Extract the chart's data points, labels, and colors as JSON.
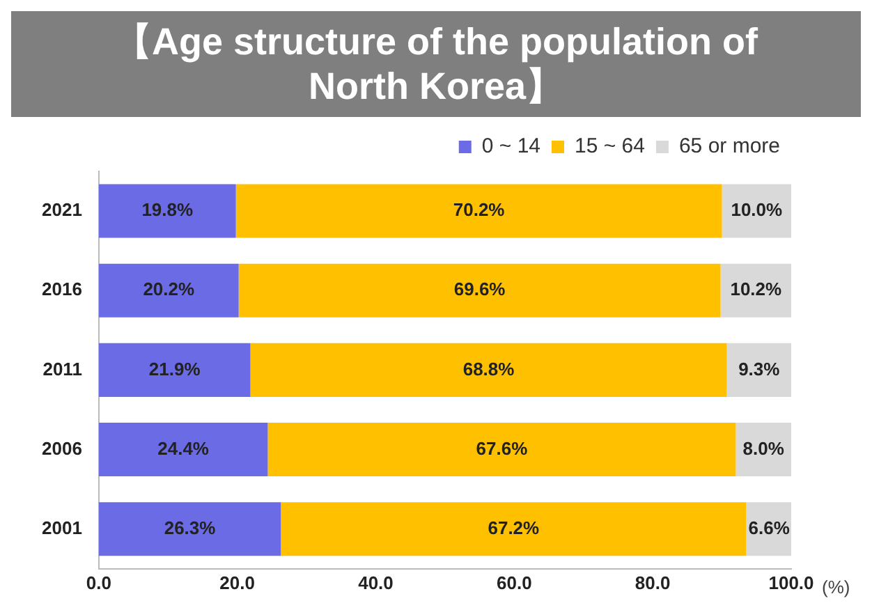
{
  "chart_data": {
    "type": "bar",
    "orientation": "horizontal",
    "stacked": true,
    "title": "【Age structure of the population of North Korea】",
    "xlabel": "(%)",
    "categories": [
      "2021",
      "2016",
      "2011",
      "2006",
      "2001"
    ],
    "series": [
      {
        "name": "0 ~ 14",
        "color": "#6b6be6",
        "values": [
          19.8,
          20.2,
          21.9,
          24.4,
          26.3
        ],
        "value_labels": [
          "19.8%",
          "20.2%",
          "21.9%",
          "24.4%",
          "26.3%"
        ]
      },
      {
        "name": "15 ~ 64",
        "color": "#ffc000",
        "values": [
          70.2,
          69.6,
          68.8,
          67.6,
          67.2
        ],
        "value_labels": [
          "70.2%",
          "69.6%",
          "68.8%",
          "67.6%",
          "67.2%"
        ]
      },
      {
        "name": "65 or more",
        "color": "#d9d9d9",
        "values": [
          10.0,
          10.2,
          9.3,
          8.0,
          6.6
        ],
        "value_labels": [
          "10.0%",
          "10.2%",
          "9.3%",
          "8.0%",
          "6.6%"
        ]
      }
    ],
    "xlim": [
      0,
      100
    ],
    "xticks": [
      {
        "value": 0,
        "label": "0.0"
      },
      {
        "value": 20,
        "label": "20.0"
      },
      {
        "value": 40,
        "label": "40.0"
      },
      {
        "value": 60,
        "label": "60.0"
      },
      {
        "value": 80,
        "label": "80.0"
      },
      {
        "value": 100,
        "label": "100.0"
      }
    ],
    "grid": false,
    "legend": "top right"
  }
}
